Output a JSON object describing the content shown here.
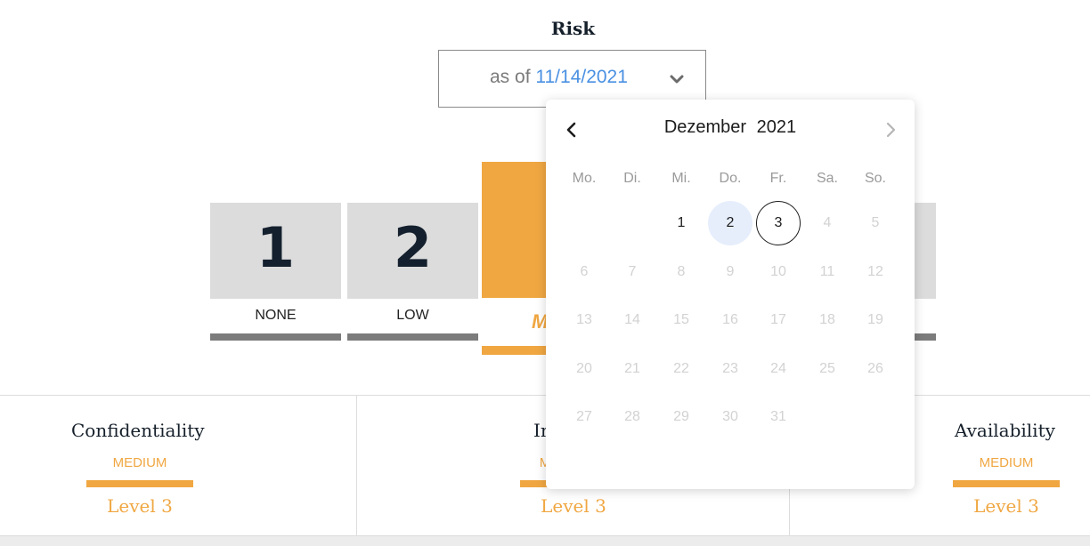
{
  "header": {
    "title": "Risk"
  },
  "date_select": {
    "prefix": "as of",
    "date": "11/14/2021",
    "icon": "chevron-down-icon"
  },
  "scores": {
    "tiles": [
      {
        "number": "1",
        "label": "NONE"
      },
      {
        "number": "2",
        "label": "LOW"
      }
    ],
    "active_label_partial": "M"
  },
  "panels": [
    {
      "title": "Confidentiality",
      "level_name": "MEDIUM",
      "level": "Level 3"
    },
    {
      "title": "In",
      "level_name": "M",
      "level": "Level 3"
    },
    {
      "title": "Availability",
      "level_name": "MEDIUM",
      "level": "Level 3"
    }
  ],
  "calendar": {
    "month": "Dezember",
    "year": "2021",
    "prev_icon": "chevron-left-icon",
    "next_icon": "chevron-right-icon",
    "weekdays": [
      "Mo.",
      "Di.",
      "Mi.",
      "Do.",
      "Fr.",
      "Sa.",
      "So."
    ],
    "first_weekday_index": 2,
    "days_in_month": 31,
    "enabled_days": [
      1,
      2,
      3
    ],
    "selected_day": 2,
    "today_day": 3
  },
  "colors": {
    "accent": "#f0a742",
    "link_blue": "#4a90e2",
    "tile_gray": "#dcdcdc",
    "bar_gray": "#7c7c7c",
    "selected_day_bg": "#e6eefc"
  }
}
